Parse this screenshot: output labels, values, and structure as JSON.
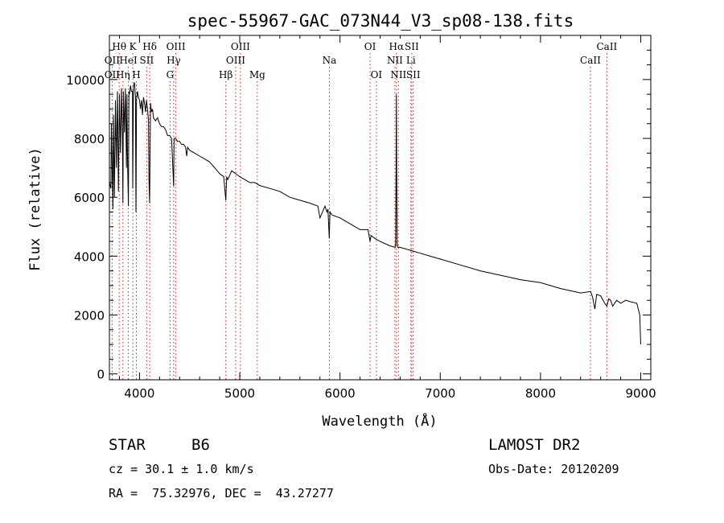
{
  "chart_data": {
    "type": "line",
    "title": "spec-55967-GAC_073N44_V3_sp08-138.fits",
    "xlabel": "Wavelength (Å)",
    "ylabel": "Flux (relative)",
    "xlim": [
      3700,
      9100
    ],
    "ylim": [
      -200,
      11500
    ],
    "xticks": [
      4000,
      5000,
      6000,
      7000,
      8000,
      9000
    ],
    "yticks": [
      0,
      2000,
      4000,
      6000,
      8000,
      10000
    ],
    "grid": false,
    "series": [
      {
        "name": "",
        "color": "#000000",
        "x": [
          3700,
          3715,
          3720,
          3735,
          3740,
          3750,
          3760,
          3770,
          3780,
          3790,
          3800,
          3810,
          3820,
          3830,
          3835,
          3840,
          3850,
          3860,
          3870,
          3875,
          3880,
          3889,
          3895,
          3900,
          3910,
          3920,
          3930,
          3933,
          3940,
          3950,
          3960,
          3965,
          3970,
          3980,
          3990,
          4000,
          4010,
          4020,
          4030,
          4040,
          4050,
          4060,
          4070,
          4080,
          4090,
          4095,
          4101,
          4110,
          4120,
          4130,
          4140,
          4160,
          4180,
          4200,
          4220,
          4240,
          4260,
          4280,
          4300,
          4320,
          4340,
          4341,
          4345,
          4360,
          4380,
          4400,
          4420,
          4440,
          4460,
          4471,
          4480,
          4500,
          4550,
          4600,
          4650,
          4700,
          4750,
          4800,
          4840,
          4861,
          4870,
          4880,
          4920,
          4960,
          5000,
          5050,
          5100,
          5150,
          5200,
          5300,
          5400,
          5500,
          5600,
          5700,
          5780,
          5800,
          5850,
          5870,
          5880,
          5893,
          5900,
          5920,
          6000,
          6100,
          6200,
          6280,
          6300,
          6310,
          6350,
          6400,
          6500,
          6550,
          6555,
          6560,
          6563,
          6565,
          6570,
          6575,
          6600,
          6700,
          6800,
          6900,
          7000,
          7200,
          7400,
          7600,
          7800,
          8000,
          8200,
          8400,
          8500,
          8520,
          8542,
          8560,
          8600,
          8640,
          8662,
          8680,
          8700,
          8720,
          8760,
          8800,
          8850,
          8900,
          8960,
          8990,
          9000
        ],
        "y": [
          6500,
          6300,
          8500,
          5600,
          8800,
          6000,
          9300,
          7000,
          9600,
          6200,
          9500,
          7500,
          9700,
          8000,
          5800,
          9600,
          8200,
          9700,
          7000,
          9500,
          7500,
          5700,
          9600,
          9500,
          9800,
          9600,
          9600,
          6300,
          9800,
          9900,
          9400,
          5500,
          9300,
          9600,
          9400,
          9300,
          9000,
          9300,
          8800,
          9400,
          9200,
          8900,
          9300,
          9000,
          8600,
          6600,
          5800,
          9200,
          8900,
          9000,
          8700,
          8600,
          8700,
          8500,
          8400,
          8400,
          8300,
          8100,
          8100,
          8000,
          6400,
          6400,
          8000,
          8000,
          7900,
          7900,
          7800,
          7800,
          7700,
          7400,
          7700,
          7600,
          7500,
          7400,
          7300,
          7200,
          7000,
          6800,
          6700,
          5900,
          6700,
          6600,
          6900,
          6800,
          6700,
          6600,
          6500,
          6500,
          6400,
          6300,
          6200,
          6000,
          5900,
          5800,
          5700,
          5300,
          5700,
          5500,
          5600,
          4600,
          5500,
          5400,
          5300,
          5100,
          4900,
          4900,
          4500,
          4700,
          4600,
          4500,
          4350,
          4300,
          4400,
          7000,
          9500,
          7000,
          4400,
          4300,
          4300,
          4200,
          4100,
          4000,
          3900,
          3700,
          3500,
          3350,
          3200,
          3100,
          2900,
          2750,
          2800,
          2600,
          2200,
          2700,
          2650,
          2400,
          2300,
          2550,
          2500,
          2300,
          2500,
          2400,
          2500,
          2450,
          2400,
          2000,
          1000
        ]
      }
    ],
    "lines": [
      {
        "name": "OII",
        "wavelength": 3727,
        "row": 2
      },
      {
        "name": "OII",
        "wavelength": 3727,
        "row": 3
      },
      {
        "name": "Hθ",
        "wavelength": 3798,
        "row": 1
      },
      {
        "name": "Hη",
        "wavelength": 3835,
        "row": 3
      },
      {
        "name": "HeI",
        "wavelength": 3889,
        "row": 2
      },
      {
        "name": "K",
        "wavelength": 3934,
        "row": 1
      },
      {
        "name": "H",
        "wavelength": 3969,
        "row": 3
      },
      {
        "name": "SII",
        "wavelength": 4072,
        "row": 2
      },
      {
        "name": "Hδ",
        "wavelength": 4102,
        "row": 1
      },
      {
        "name": "G",
        "wavelength": 4305,
        "row": 3
      },
      {
        "name": "Hγ",
        "wavelength": 4341,
        "row": 2
      },
      {
        "name": "OIII",
        "wavelength": 4363,
        "row": 1
      },
      {
        "name": "Hβ",
        "wavelength": 4861,
        "row": 3
      },
      {
        "name": "OIII",
        "wavelength": 4959,
        "row": 2
      },
      {
        "name": "OIII",
        "wavelength": 5007,
        "row": 1
      },
      {
        "name": "Mg",
        "wavelength": 5175,
        "row": 3
      },
      {
        "name": "Na",
        "wavelength": 5894,
        "row": 2
      },
      {
        "name": "OI",
        "wavelength": 6300,
        "row": 1
      },
      {
        "name": "OI",
        "wavelength": 6363,
        "row": 3
      },
      {
        "name": "NII",
        "wavelength": 6548,
        "row": 2
      },
      {
        "name": "Hα",
        "wavelength": 6563,
        "row": 1
      },
      {
        "name": "NII",
        "wavelength": 6583,
        "row": 3
      },
      {
        "name": "Li",
        "wavelength": 6707,
        "row": 2
      },
      {
        "name": "SII",
        "wavelength": 6716,
        "row": 1
      },
      {
        "name": "SII",
        "wavelength": 6731,
        "row": 3
      },
      {
        "name": "CaII",
        "wavelength": 8498,
        "row": 2
      },
      {
        "name": "CaII",
        "wavelength": 8662,
        "row": 1
      }
    ]
  },
  "info": {
    "class": "STAR",
    "subclass": "B6",
    "survey": "LAMOST DR2",
    "cz": "cz = 30.1 ± 1.0 km/s",
    "obs_date": "Obs-Date: 20120209",
    "coords": "RA =  75.32976, DEC =  43.27277"
  }
}
